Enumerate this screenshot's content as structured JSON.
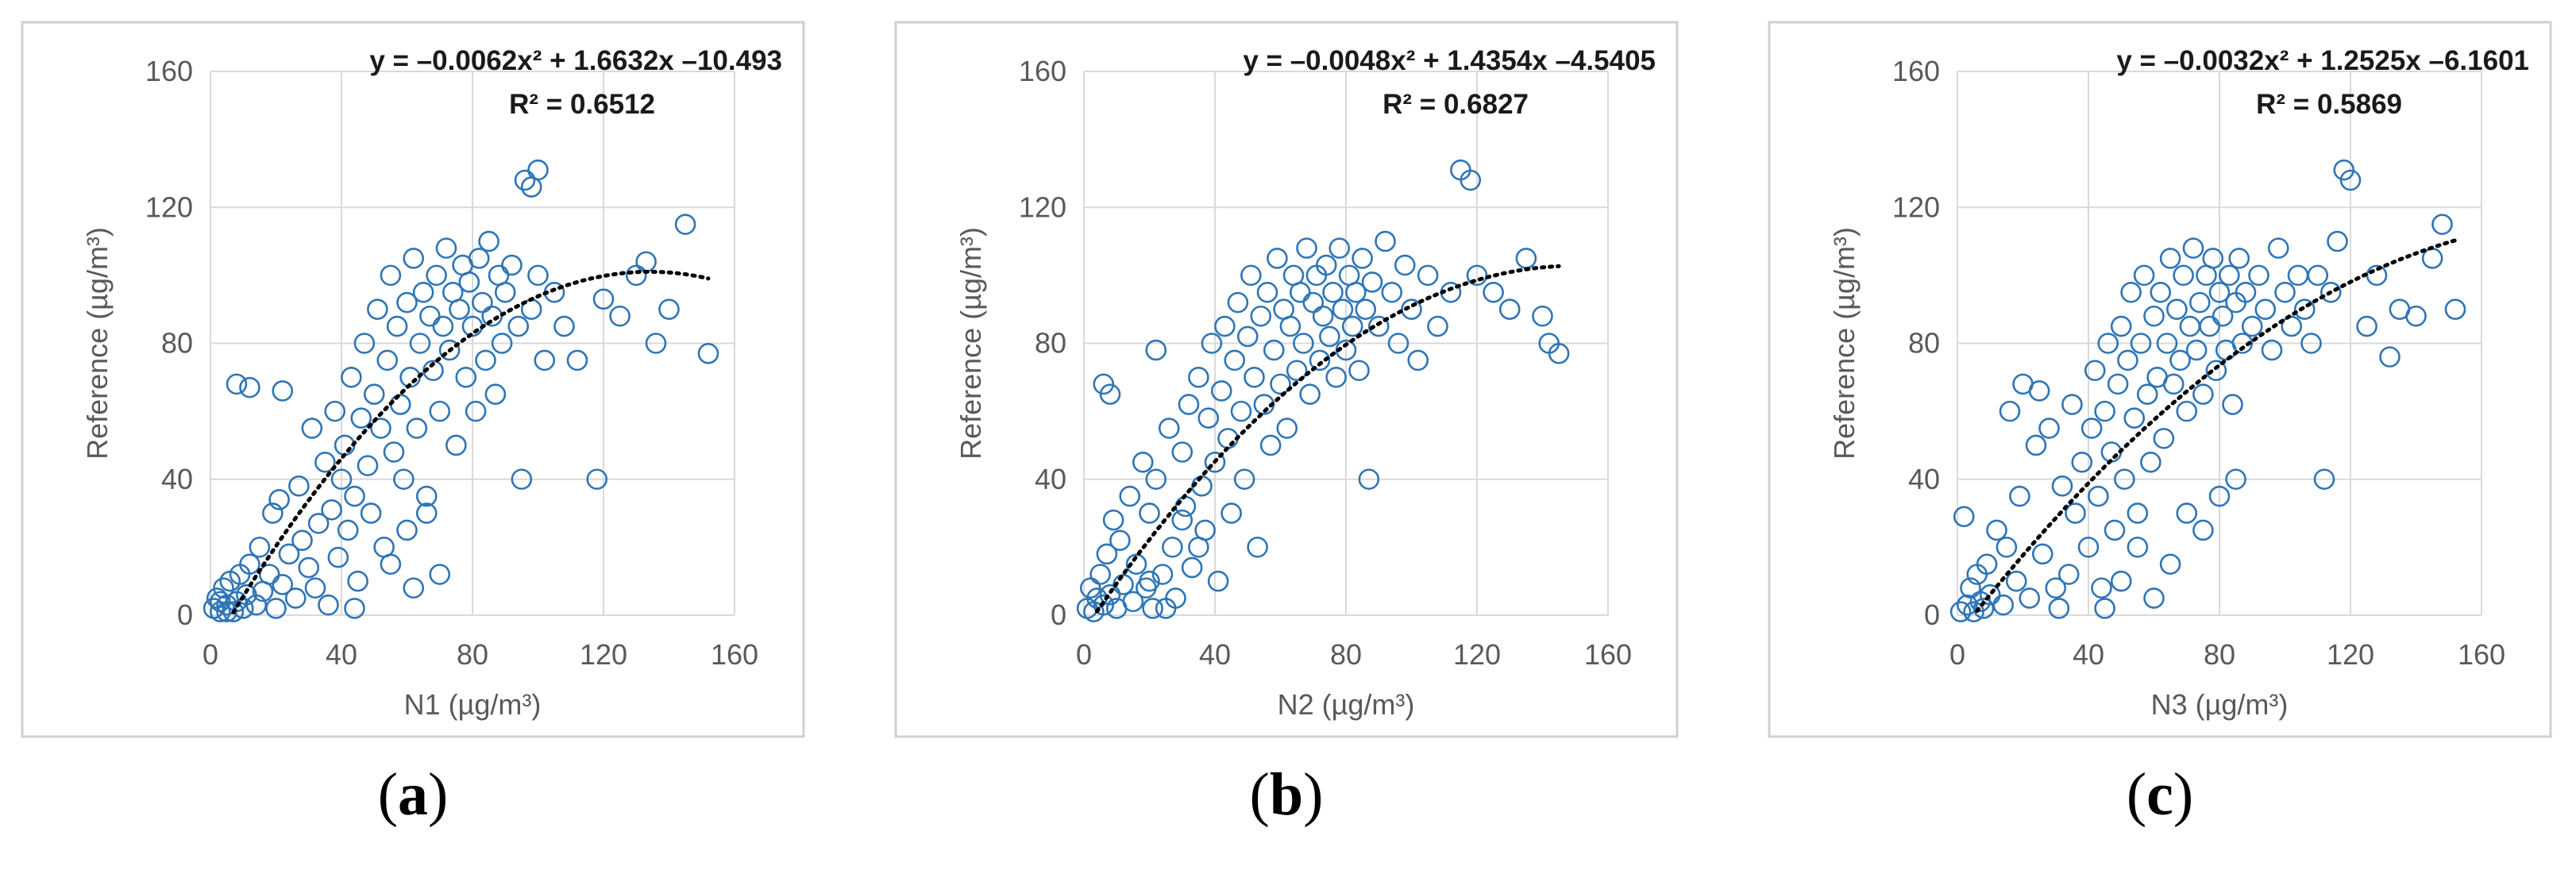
{
  "chart_data": [
    {
      "type": "scatter",
      "panel_label": "a",
      "equation": "y = –0.0062x² + 1.6632x –10.493",
      "r2": "R² = 0.6512",
      "xlabel": "N1 (µg/m³)",
      "ylabel": "Reference (µg/m³)",
      "xlim": [
        0,
        160
      ],
      "ylim": [
        0,
        160
      ],
      "xticks": [
        "0",
        "40",
        "80",
        "120",
        "160"
      ],
      "yticks": [
        "0",
        "40",
        "80",
        "120",
        "160"
      ],
      "grid": true,
      "marker_color": "#2E75B6",
      "trendline": {
        "a": -0.0062,
        "b": 1.6632,
        "c": -10.493,
        "x_range": [
          7,
          152
        ]
      },
      "points_approximate": true,
      "points": [
        [
          1,
          2
        ],
        [
          2,
          5
        ],
        [
          3,
          1
        ],
        [
          4,
          8
        ],
        [
          5,
          3
        ],
        [
          6,
          10
        ],
        [
          7,
          1
        ],
        [
          8,
          4
        ],
        [
          9,
          12
        ],
        [
          10,
          2
        ],
        [
          11,
          6
        ],
        [
          12,
          15
        ],
        [
          14,
          3
        ],
        [
          15,
          20
        ],
        [
          16,
          7
        ],
        [
          18,
          12
        ],
        [
          19,
          30
        ],
        [
          20,
          2
        ],
        [
          21,
          34
        ],
        [
          22,
          9
        ],
        [
          24,
          18
        ],
        [
          26,
          5
        ],
        [
          27,
          38
        ],
        [
          28,
          22
        ],
        [
          30,
          14
        ],
        [
          31,
          55
        ],
        [
          32,
          8
        ],
        [
          33,
          27
        ],
        [
          35,
          45
        ],
        [
          36,
          3
        ],
        [
          37,
          31
        ],
        [
          38,
          60
        ],
        [
          39,
          17
        ],
        [
          40,
          40
        ],
        [
          41,
          50
        ],
        [
          42,
          25
        ],
        [
          43,
          70
        ],
        [
          44,
          35
        ],
        [
          45,
          10
        ],
        [
          46,
          58
        ],
        [
          47,
          80
        ],
        [
          48,
          44
        ],
        [
          49,
          30
        ],
        [
          50,
          65
        ],
        [
          51,
          90
        ],
        [
          52,
          55
        ],
        [
          53,
          20
        ],
        [
          54,
          75
        ],
        [
          55,
          100
        ],
        [
          56,
          48
        ],
        [
          57,
          85
        ],
        [
          58,
          62
        ],
        [
          59,
          40
        ],
        [
          60,
          92
        ],
        [
          61,
          70
        ],
        [
          62,
          105
        ],
        [
          63,
          55
        ],
        [
          64,
          80
        ],
        [
          65,
          95
        ],
        [
          66,
          35
        ],
        [
          67,
          88
        ],
        [
          68,
          72
        ],
        [
          69,
          100
        ],
        [
          70,
          60
        ],
        [
          71,
          85
        ],
        [
          72,
          108
        ],
        [
          73,
          78
        ],
        [
          74,
          95
        ],
        [
          75,
          50
        ],
        [
          76,
          90
        ],
        [
          77,
          103
        ],
        [
          78,
          70
        ],
        [
          79,
          98
        ],
        [
          80,
          85
        ],
        [
          81,
          60
        ],
        [
          82,
          105
        ],
        [
          83,
          92
        ],
        [
          84,
          75
        ],
        [
          85,
          110
        ],
        [
          86,
          88
        ],
        [
          87,
          65
        ],
        [
          88,
          100
        ],
        [
          89,
          80
        ],
        [
          90,
          95
        ],
        [
          92,
          103
        ],
        [
          94,
          85
        ],
        [
          96,
          128
        ],
        [
          98,
          90
        ],
        [
          100,
          100
        ],
        [
          102,
          75
        ],
        [
          105,
          95
        ],
        [
          108,
          85
        ],
        [
          112,
          75
        ],
        [
          118,
          40
        ],
        [
          120,
          93
        ],
        [
          125,
          88
        ],
        [
          130,
          100
        ],
        [
          133,
          104
        ],
        [
          136,
          80
        ],
        [
          140,
          90
        ],
        [
          145,
          115
        ],
        [
          152,
          77
        ],
        [
          22,
          66
        ],
        [
          12,
          67
        ],
        [
          8,
          68
        ],
        [
          5,
          1
        ],
        [
          3,
          4
        ],
        [
          44,
          2
        ],
        [
          55,
          15
        ],
        [
          60,
          25
        ],
        [
          70,
          12
        ],
        [
          66,
          30
        ],
        [
          62,
          8
        ],
        [
          95,
          40
        ],
        [
          100,
          131
        ],
        [
          98,
          126
        ]
      ]
    },
    {
      "type": "scatter",
      "panel_label": "b",
      "equation": "y = –0.0048x² + 1.4354x –4.5405",
      "r2": "R² = 0.6827",
      "xlabel": "N2 (µg/m³)",
      "ylabel": "Reference (µg/m³)",
      "xlim": [
        0,
        160
      ],
      "ylim": [
        0,
        160
      ],
      "xticks": [
        "0",
        "40",
        "80",
        "120",
        "160"
      ],
      "yticks": [
        "0",
        "40",
        "80",
        "120",
        "160"
      ],
      "grid": true,
      "marker_color": "#2E75B6",
      "trendline": {
        "a": -0.0048,
        "b": 1.4354,
        "c": -4.5405,
        "x_range": [
          4,
          145
        ]
      },
      "points_approximate": true,
      "points": [
        [
          1,
          2
        ],
        [
          2,
          8
        ],
        [
          3,
          1
        ],
        [
          4,
          5
        ],
        [
          5,
          12
        ],
        [
          6,
          3
        ],
        [
          7,
          18
        ],
        [
          8,
          6
        ],
        [
          9,
          28
        ],
        [
          10,
          2
        ],
        [
          11,
          22
        ],
        [
          12,
          9
        ],
        [
          14,
          35
        ],
        [
          15,
          4
        ],
        [
          16,
          15
        ],
        [
          18,
          45
        ],
        [
          19,
          8
        ],
        [
          20,
          30
        ],
        [
          21,
          2
        ],
        [
          22,
          40
        ],
        [
          24,
          12
        ],
        [
          26,
          55
        ],
        [
          27,
          20
        ],
        [
          28,
          5
        ],
        [
          30,
          48
        ],
        [
          31,
          32
        ],
        [
          32,
          62
        ],
        [
          33,
          14
        ],
        [
          35,
          70
        ],
        [
          36,
          38
        ],
        [
          37,
          25
        ],
        [
          38,
          58
        ],
        [
          39,
          80
        ],
        [
          40,
          45
        ],
        [
          41,
          10
        ],
        [
          42,
          66
        ],
        [
          43,
          85
        ],
        [
          44,
          52
        ],
        [
          45,
          30
        ],
        [
          46,
          75
        ],
        [
          47,
          92
        ],
        [
          48,
          60
        ],
        [
          49,
          40
        ],
        [
          50,
          82
        ],
        [
          51,
          100
        ],
        [
          52,
          70
        ],
        [
          53,
          20
        ],
        [
          54,
          88
        ],
        [
          55,
          62
        ],
        [
          56,
          95
        ],
        [
          57,
          50
        ],
        [
          58,
          78
        ],
        [
          59,
          105
        ],
        [
          60,
          68
        ],
        [
          61,
          90
        ],
        [
          62,
          55
        ],
        [
          63,
          85
        ],
        [
          64,
          100
        ],
        [
          65,
          72
        ],
        [
          66,
          95
        ],
        [
          67,
          80
        ],
        [
          68,
          108
        ],
        [
          69,
          65
        ],
        [
          70,
          92
        ],
        [
          71,
          100
        ],
        [
          72,
          75
        ],
        [
          73,
          88
        ],
        [
          74,
          103
        ],
        [
          75,
          82
        ],
        [
          76,
          95
        ],
        [
          77,
          70
        ],
        [
          78,
          108
        ],
        [
          79,
          90
        ],
        [
          80,
          78
        ],
        [
          81,
          100
        ],
        [
          82,
          85
        ],
        [
          83,
          95
        ],
        [
          84,
          72
        ],
        [
          85,
          105
        ],
        [
          86,
          90
        ],
        [
          87,
          40
        ],
        [
          88,
          98
        ],
        [
          90,
          85
        ],
        [
          92,
          110
        ],
        [
          94,
          95
        ],
        [
          96,
          80
        ],
        [
          98,
          103
        ],
        [
          100,
          90
        ],
        [
          102,
          75
        ],
        [
          105,
          100
        ],
        [
          108,
          85
        ],
        [
          112,
          95
        ],
        [
          115,
          131
        ],
        [
          118,
          128
        ],
        [
          120,
          100
        ],
        [
          125,
          95
        ],
        [
          130,
          90
        ],
        [
          135,
          105
        ],
        [
          140,
          88
        ],
        [
          142,
          80
        ],
        [
          145,
          77
        ],
        [
          6,
          68
        ],
        [
          8,
          65
        ],
        [
          22,
          78
        ],
        [
          30,
          28
        ],
        [
          35,
          20
        ],
        [
          20,
          10
        ],
        [
          25,
          2
        ]
      ]
    },
    {
      "type": "scatter",
      "panel_label": "c",
      "equation": "y = –0.0032x² + 1.2525x –6.1601",
      "r2": "R² = 0.5869",
      "xlabel": "N3 (µg/m³)",
      "ylabel": "Reference (µg/m³)",
      "xlim": [
        0,
        160
      ],
      "ylim": [
        0,
        160
      ],
      "xticks": [
        "0",
        "40",
        "80",
        "120",
        "160"
      ],
      "yticks": [
        "0",
        "40",
        "80",
        "120",
        "160"
      ],
      "grid": true,
      "marker_color": "#2E75B6",
      "trendline": {
        "a": -0.0032,
        "b": 1.2525,
        "c": -6.1601,
        "x_range": [
          6,
          152
        ]
      },
      "points_approximate": true,
      "points": [
        [
          1,
          1
        ],
        [
          2,
          29
        ],
        [
          3,
          3
        ],
        [
          4,
          8
        ],
        [
          5,
          1
        ],
        [
          6,
          12
        ],
        [
          7,
          4
        ],
        [
          8,
          2
        ],
        [
          9,
          15
        ],
        [
          10,
          6
        ],
        [
          12,
          25
        ],
        [
          14,
          3
        ],
        [
          15,
          20
        ],
        [
          16,
          60
        ],
        [
          18,
          10
        ],
        [
          19,
          35
        ],
        [
          20,
          68
        ],
        [
          22,
          5
        ],
        [
          24,
          50
        ],
        [
          25,
          66
        ],
        [
          26,
          18
        ],
        [
          28,
          55
        ],
        [
          30,
          8
        ],
        [
          31,
          2
        ],
        [
          32,
          38
        ],
        [
          34,
          12
        ],
        [
          35,
          62
        ],
        [
          36,
          30
        ],
        [
          38,
          45
        ],
        [
          40,
          20
        ],
        [
          41,
          55
        ],
        [
          42,
          72
        ],
        [
          43,
          35
        ],
        [
          44,
          8
        ],
        [
          45,
          60
        ],
        [
          46,
          80
        ],
        [
          47,
          48
        ],
        [
          48,
          25
        ],
        [
          49,
          68
        ],
        [
          50,
          85
        ],
        [
          51,
          40
        ],
        [
          52,
          75
        ],
        [
          53,
          95
        ],
        [
          54,
          58
        ],
        [
          55,
          30
        ],
        [
          56,
          80
        ],
        [
          57,
          100
        ],
        [
          58,
          65
        ],
        [
          59,
          45
        ],
        [
          60,
          88
        ],
        [
          61,
          70
        ],
        [
          62,
          95
        ],
        [
          63,
          52
        ],
        [
          64,
          80
        ],
        [
          65,
          105
        ],
        [
          66,
          68
        ],
        [
          67,
          90
        ],
        [
          68,
          75
        ],
        [
          69,
          100
        ],
        [
          70,
          60
        ],
        [
          71,
          85
        ],
        [
          72,
          108
        ],
        [
          73,
          78
        ],
        [
          74,
          92
        ],
        [
          75,
          65
        ],
        [
          76,
          100
        ],
        [
          77,
          85
        ],
        [
          78,
          105
        ],
        [
          79,
          72
        ],
        [
          80,
          95
        ],
        [
          81,
          88
        ],
        [
          82,
          78
        ],
        [
          83,
          100
        ],
        [
          84,
          62
        ],
        [
          85,
          92
        ],
        [
          86,
          105
        ],
        [
          87,
          80
        ],
        [
          88,
          95
        ],
        [
          90,
          85
        ],
        [
          92,
          100
        ],
        [
          94,
          90
        ],
        [
          96,
          78
        ],
        [
          98,
          108
        ],
        [
          100,
          95
        ],
        [
          102,
          85
        ],
        [
          104,
          100
        ],
        [
          106,
          90
        ],
        [
          108,
          80
        ],
        [
          110,
          100
        ],
        [
          112,
          40
        ],
        [
          114,
          95
        ],
        [
          116,
          110
        ],
        [
          118,
          131
        ],
        [
          120,
          128
        ],
        [
          125,
          85
        ],
        [
          128,
          100
        ],
        [
          132,
          76
        ],
        [
          135,
          90
        ],
        [
          140,
          88
        ],
        [
          145,
          105
        ],
        [
          148,
          115
        ],
        [
          152,
          90
        ],
        [
          45,
          2
        ],
        [
          50,
          10
        ],
        [
          55,
          20
        ],
        [
          60,
          5
        ],
        [
          65,
          15
        ],
        [
          70,
          30
        ],
        [
          75,
          25
        ],
        [
          80,
          35
        ],
        [
          85,
          40
        ]
      ]
    }
  ]
}
